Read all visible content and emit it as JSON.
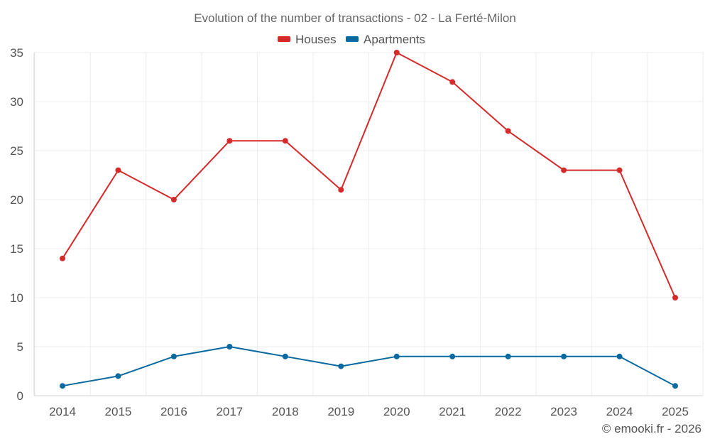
{
  "chart_data": {
    "type": "line",
    "title": "Evolution of the number of transactions - 02 - La Ferté-Milon",
    "xlabel": "",
    "ylabel": "",
    "categories": [
      "2014",
      "2015",
      "2016",
      "2017",
      "2018",
      "2019",
      "2020",
      "2021",
      "2022",
      "2023",
      "2024",
      "2025"
    ],
    "ylim": [
      0,
      35
    ],
    "yticks": [
      0,
      5,
      10,
      15,
      20,
      25,
      30,
      35
    ],
    "grid": true,
    "legend_position": "top-center",
    "series": [
      {
        "name": "Houses",
        "color": "#d42a2a",
        "values": [
          14,
          23,
          20,
          26,
          26,
          21,
          35,
          32,
          27,
          23,
          23,
          10
        ]
      },
      {
        "name": "Apartments",
        "color": "#0b6a9f",
        "values": [
          1,
          2,
          4,
          5,
          4,
          3,
          4,
          4,
          4,
          4,
          4,
          1
        ]
      }
    ]
  },
  "credit": "© emooki.fr - 2026"
}
